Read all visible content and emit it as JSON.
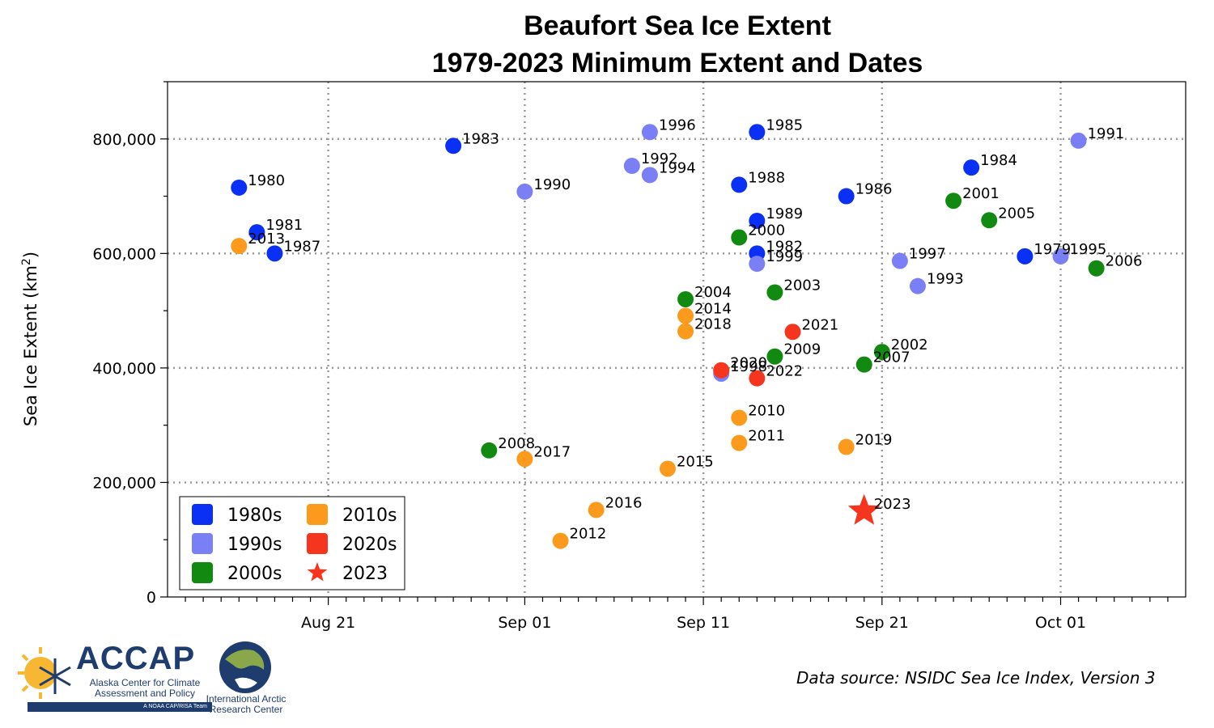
{
  "chart_data": {
    "type": "scatter",
    "title": "Beaufort Sea Ice Extent",
    "subtitle": "1979-2023 Minimum Extent and Dates",
    "ylabel": "Sea Ice Extent (km",
    "ylabel_sup": "2",
    "ylabel_close": ")",
    "xlim": [
      "2000-08-12",
      "2000-10-08"
    ],
    "ylim": [
      0,
      900000
    ],
    "x_ticks": [
      {
        "date": "2000-08-21",
        "label": "Aug 21"
      },
      {
        "date": "2000-09-01",
        "label": "Sep 01"
      },
      {
        "date": "2000-09-11",
        "label": "Sep 11"
      },
      {
        "date": "2000-09-21",
        "label": "Sep 21"
      },
      {
        "date": "2000-10-01",
        "label": "Oct 01"
      }
    ],
    "y_ticks": [
      {
        "value": 0,
        "label": "0"
      },
      {
        "value": 200000,
        "label": "200,000"
      },
      {
        "value": 400000,
        "label": "400,000"
      },
      {
        "value": 600000,
        "label": "600,000"
      },
      {
        "value": 800000,
        "label": "800,000"
      }
    ],
    "grid": true,
    "legend_position": "bottom-left",
    "series": [
      {
        "name": "1980s",
        "color": "#0a2ff5",
        "marker": "circle",
        "points": [
          {
            "label": "1979",
            "date": "2000-09-29",
            "y": 595000
          },
          {
            "label": "1980",
            "date": "2000-08-16",
            "y": 715000
          },
          {
            "label": "1981",
            "date": "2000-08-17",
            "y": 637000
          },
          {
            "label": "1982",
            "date": "2000-09-14",
            "y": 600000
          },
          {
            "label": "1983",
            "date": "2000-08-28",
            "y": 788000
          },
          {
            "label": "1984",
            "date": "2000-09-26",
            "y": 750000
          },
          {
            "label": "1985",
            "date": "2000-09-14",
            "y": 812000
          },
          {
            "label": "1986",
            "date": "2000-09-19",
            "y": 700000
          },
          {
            "label": "1987",
            "date": "2000-08-18",
            "y": 600000
          },
          {
            "label": "1988",
            "date": "2000-09-13",
            "y": 720000
          },
          {
            "label": "1989",
            "date": "2000-09-14",
            "y": 657000
          }
        ]
      },
      {
        "name": "1990s",
        "color": "#7b7ff5",
        "marker": "circle",
        "points": [
          {
            "label": "1990",
            "date": "2000-09-01",
            "y": 708000
          },
          {
            "label": "1991",
            "date": "2000-10-02",
            "y": 797000
          },
          {
            "label": "1992",
            "date": "2000-09-07",
            "y": 753000
          },
          {
            "label": "1993",
            "date": "2000-09-23",
            "y": 543000
          },
          {
            "label": "1994",
            "date": "2000-09-08",
            "y": 737000
          },
          {
            "label": "1995",
            "date": "2000-10-01",
            "y": 595000
          },
          {
            "label": "1996",
            "date": "2000-09-08",
            "y": 812000
          },
          {
            "label": "1997",
            "date": "2000-09-22",
            "y": 587000
          },
          {
            "label": "1998",
            "date": "2000-09-12",
            "y": 390000
          },
          {
            "label": "1999",
            "date": "2000-09-14",
            "y": 582000
          }
        ]
      },
      {
        "name": "2000s",
        "color": "#128a12",
        "marker": "circle",
        "points": [
          {
            "label": "2000",
            "date": "2000-09-13",
            "y": 628000
          },
          {
            "label": "2001",
            "date": "2000-09-25",
            "y": 692000
          },
          {
            "label": "2002",
            "date": "2000-09-21",
            "y": 428000
          },
          {
            "label": "2003",
            "date": "2000-09-15",
            "y": 532000
          },
          {
            "label": "2004",
            "date": "2000-09-10",
            "y": 520000
          },
          {
            "label": "2005",
            "date": "2000-09-27",
            "y": 658000
          },
          {
            "label": "2006",
            "date": "2000-10-03",
            "y": 574000
          },
          {
            "label": "2007",
            "date": "2000-09-20",
            "y": 406000
          },
          {
            "label": "2008",
            "date": "2000-08-30",
            "y": 256000
          },
          {
            "label": "2009",
            "date": "2000-09-15",
            "y": 420000
          }
        ]
      },
      {
        "name": "2010s",
        "color": "#fb9a1d",
        "marker": "circle",
        "points": [
          {
            "label": "2010",
            "date": "2000-09-13",
            "y": 313000
          },
          {
            "label": "2011",
            "date": "2000-09-13",
            "y": 269000
          },
          {
            "label": "2012",
            "date": "2000-09-03",
            "y": 98000
          },
          {
            "label": "2013",
            "date": "2000-08-16",
            "y": 613000
          },
          {
            "label": "2014",
            "date": "2000-09-10",
            "y": 491000
          },
          {
            "label": "2015",
            "date": "2000-09-09",
            "y": 224000
          },
          {
            "label": "2016",
            "date": "2000-09-05",
            "y": 152000
          },
          {
            "label": "2017",
            "date": "2000-09-01",
            "y": 241000
          },
          {
            "label": "2018",
            "date": "2000-09-10",
            "y": 464000
          },
          {
            "label": "2019",
            "date": "2000-09-19",
            "y": 262000
          }
        ]
      },
      {
        "name": "2020s",
        "color": "#f5351d",
        "marker": "circle",
        "points": [
          {
            "label": "2020",
            "date": "2000-09-12",
            "y": 396000
          },
          {
            "label": "2021",
            "date": "2000-09-16",
            "y": 463000
          },
          {
            "label": "2022",
            "date": "2000-09-14",
            "y": 382000
          }
        ]
      },
      {
        "name": "2023",
        "color": "#f5351d",
        "marker": "star",
        "points": [
          {
            "label": "2023",
            "date": "2000-09-20",
            "y": 150000
          }
        ]
      }
    ]
  },
  "logos": {
    "accap_title": "ACCAP",
    "accap_subtitle": "Alaska Center for Climate Assessment and Policy",
    "accap_tagline": "A NOAA CAP/RISA Team",
    "iarc_text": "International Arctic Research Center"
  },
  "source_note": "Data source: NSIDC Sea Ice Index, Version 3"
}
